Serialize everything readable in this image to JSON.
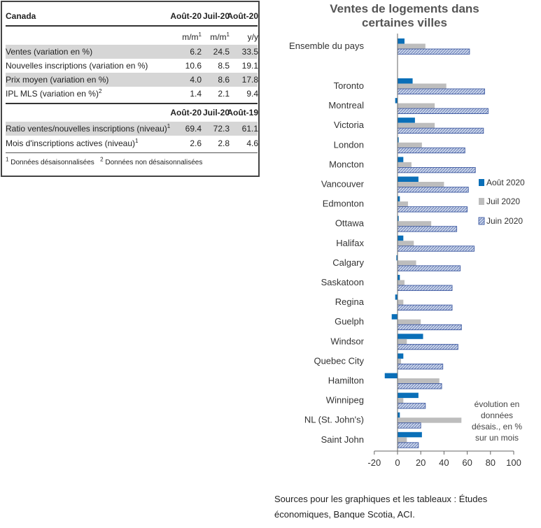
{
  "table": {
    "header": {
      "title": "Canada",
      "cols": [
        "Août-20",
        "Juil-20",
        "Août-20"
      ]
    },
    "units": [
      "m/m",
      "m/m",
      "y/y"
    ],
    "rows": [
      {
        "label": "Ventes (variation en %)",
        "v": [
          "6.2",
          "24.5",
          "33.5"
        ]
      },
      {
        "label": "Nouvelles inscriptions (variation en %)",
        "v": [
          "10.6",
          "8.5",
          "19.1"
        ]
      },
      {
        "label": "Prix moyen (variation en %)",
        "v": [
          "4.0",
          "8.6",
          "17.8"
        ]
      },
      {
        "label": "IPL MLS (variation en %)",
        "v": [
          "1.4",
          "2.1",
          "9.4"
        ]
      }
    ],
    "header2": {
      "cols": [
        "Août-20",
        "Juil-20",
        "Août-19"
      ]
    },
    "rows2": [
      {
        "label": "Ratio ventes/nouvelles inscriptions (niveau)",
        "v": [
          "69.4",
          "72.3",
          "61.1"
        ]
      },
      {
        "label": "Mois d'inscriptions actives (niveau)",
        "v": [
          "2.6",
          "2.8",
          "4.6"
        ]
      }
    ],
    "footnote1": "Données désaisonnalisées",
    "footnote2": "Données non désaisonnalisées",
    "sup1": "1",
    "sup2": "2"
  },
  "chart_data": {
    "type": "bar",
    "orientation": "horizontal",
    "title": "Ventes de logements dans certaines villes",
    "title_lines": [
      "Ventes de logements dans",
      "certaines villes"
    ],
    "categories": [
      "Ensemble du pays",
      "Toronto",
      "Montreal",
      "Victoria",
      "London",
      "Moncton",
      "Vancouver",
      "Edmonton",
      "Ottawa",
      "Halifax",
      "Calgary",
      "Saskatoon",
      "Regina",
      "Guelph",
      "Windsor",
      "Quebec City",
      "Hamilton",
      "Winnipeg",
      "NL (St. John's)",
      "Saint John"
    ],
    "series": [
      {
        "name": "Août 2020",
        "color": "#0a6fb8",
        "values": [
          6,
          13,
          -2,
          15,
          1,
          5,
          18,
          2,
          1,
          5,
          -1,
          2,
          -2,
          -5,
          22,
          5,
          -11,
          18,
          2,
          21
        ]
      },
      {
        "name": "Juil 2020",
        "color": "#bdbdbd",
        "values": [
          24,
          42,
          32,
          32,
          21,
          12,
          40,
          9,
          29,
          14,
          16,
          6,
          5,
          20,
          8,
          3,
          36,
          5,
          55,
          8
        ]
      },
      {
        "name": "Juin 2020",
        "color": "#b9c8e6",
        "values": [
          62,
          75,
          78,
          74,
          58,
          67,
          61,
          60,
          51,
          66,
          54,
          47,
          47,
          55,
          52,
          39,
          38,
          24,
          20,
          18
        ]
      }
    ],
    "xlim": [
      -20,
      100
    ],
    "xticks": [
      "-20",
      "0",
      "20",
      "40",
      "60",
      "80",
      "100"
    ],
    "legend_position": "right",
    "annotation": [
      "évolution en",
      "données",
      "désais., en %",
      "sur un mois"
    ]
  },
  "sources": "Sources pour les graphiques et les tableaux : Études économiques, Banque Scotia, ACI."
}
